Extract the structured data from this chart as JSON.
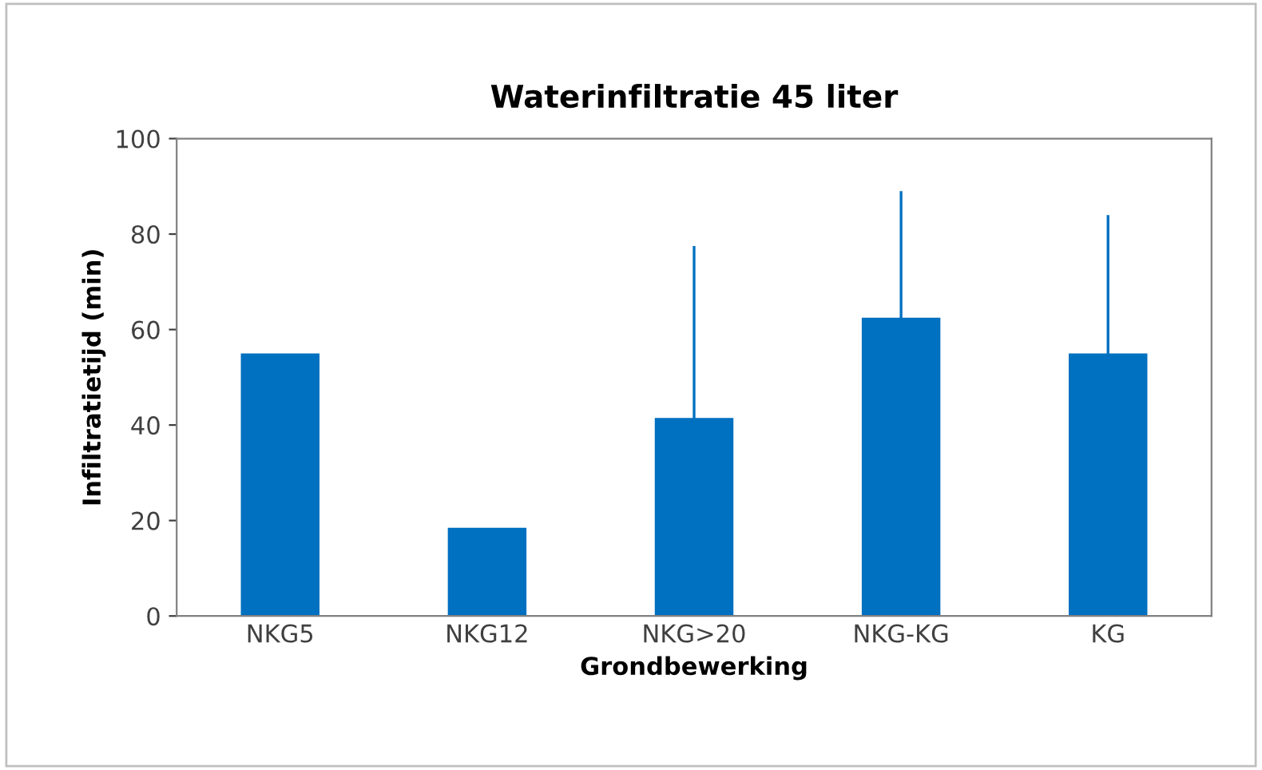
{
  "chart_data": {
    "type": "bar",
    "title": "Waterinfiltratie 45 liter",
    "xlabel": "Grondbewerking",
    "ylabel": "Infiltratietijd (min)",
    "categories": [
      "NKG5",
      "NKG12",
      "NKG>20",
      "NKG-KG",
      "KG"
    ],
    "values": [
      55,
      18.5,
      41.5,
      62.5,
      55
    ],
    "errors": [
      null,
      null,
      36,
      26.5,
      29
    ],
    "color": "#0070c0",
    "ylim": [
      0,
      100
    ],
    "yticks": [
      0,
      20,
      40,
      60,
      80,
      100
    ],
    "grid": false
  }
}
